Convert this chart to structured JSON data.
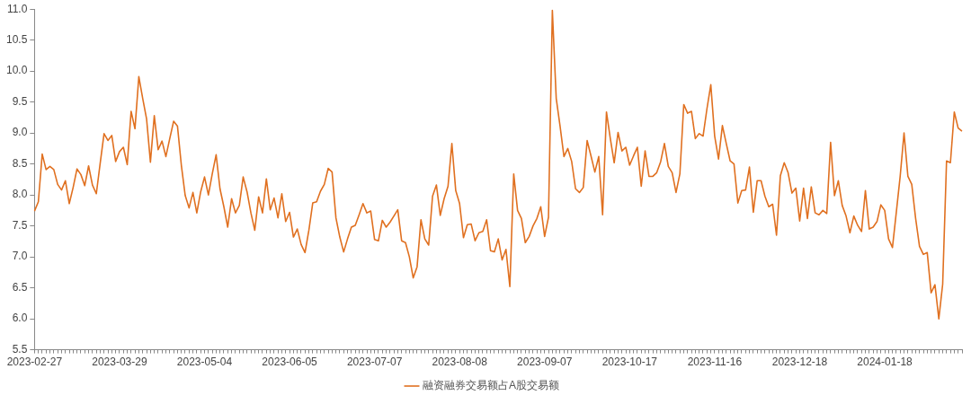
{
  "chart_data": {
    "type": "line",
    "categories": [
      "2023-02-27",
      null,
      null,
      null,
      null,
      null,
      null,
      null,
      null,
      null,
      null,
      null,
      null,
      null,
      null,
      null,
      null,
      null,
      null,
      null,
      null,
      null,
      "2023-03-29",
      null,
      null,
      null,
      null,
      null,
      null,
      null,
      null,
      null,
      null,
      null,
      null,
      null,
      null,
      null,
      null,
      null,
      null,
      null,
      null,
      null,
      "2023-05-04",
      null,
      null,
      null,
      null,
      null,
      null,
      null,
      null,
      null,
      null,
      null,
      null,
      null,
      null,
      null,
      null,
      null,
      null,
      null,
      null,
      null,
      "2023-06-05",
      null,
      null,
      null,
      null,
      null,
      null,
      null,
      null,
      null,
      null,
      null,
      null,
      null,
      null,
      null,
      null,
      null,
      null,
      null,
      null,
      null,
      "2023-07-07",
      null,
      null,
      null,
      null,
      null,
      null,
      null,
      null,
      null,
      null,
      null,
      null,
      null,
      null,
      null,
      null,
      null,
      null,
      null,
      null,
      null,
      "2023-08-08",
      null,
      null,
      null,
      null,
      null,
      null,
      null,
      null,
      null,
      null,
      null,
      null,
      null,
      null,
      null,
      null,
      null,
      null,
      null,
      null,
      null,
      "2023-09-07",
      null,
      null,
      null,
      null,
      null,
      null,
      null,
      null,
      null,
      null,
      null,
      null,
      null,
      null,
      null,
      null,
      null,
      null,
      null,
      null,
      null,
      "2023-10-17",
      null,
      null,
      null,
      null,
      null,
      null,
      null,
      null,
      null,
      null,
      null,
      null,
      null,
      null,
      null,
      null,
      null,
      null,
      null,
      null,
      null,
      "2023-11-16",
      null,
      null,
      null,
      null,
      null,
      null,
      null,
      null,
      null,
      null,
      null,
      null,
      null,
      null,
      null,
      null,
      null,
      null,
      null,
      null,
      null,
      "2023-12-18",
      null,
      null,
      null,
      null,
      null,
      null,
      null,
      null,
      null,
      null,
      null,
      null,
      null,
      null,
      null,
      null,
      null,
      null,
      null,
      null,
      null,
      "2024-01-18",
      null,
      null,
      null,
      null,
      null,
      null,
      null,
      null,
      null,
      null,
      null,
      null,
      null,
      null,
      null,
      null,
      null,
      null,
      null,
      null
    ],
    "series": [
      {
        "name": "融资融券交易额占A股交易额",
        "color": "#e07020",
        "values": [
          7.74,
          7.89,
          8.66,
          8.41,
          8.46,
          8.41,
          8.17,
          8.08,
          8.23,
          7.86,
          8.12,
          8.42,
          8.33,
          8.15,
          8.47,
          8.16,
          8.02,
          8.51,
          8.99,
          8.88,
          8.96,
          8.54,
          8.7,
          8.77,
          8.49,
          9.35,
          9.07,
          9.91,
          9.56,
          9.23,
          8.53,
          9.28,
          8.73,
          8.87,
          8.62,
          8.91,
          9.19,
          9.11,
          8.48,
          7.99,
          7.79,
          8.04,
          7.71,
          8.05,
          8.29,
          8.0,
          8.34,
          8.65,
          8.1,
          7.81,
          7.48,
          7.94,
          7.71,
          7.83,
          8.29,
          8.05,
          7.71,
          7.43,
          7.97,
          7.71,
          8.26,
          7.76,
          7.95,
          7.63,
          8.02,
          7.57,
          7.72,
          7.32,
          7.45,
          7.2,
          7.07,
          7.43,
          7.87,
          7.89,
          8.06,
          8.17,
          8.43,
          8.37,
          7.63,
          7.32,
          7.08,
          7.29,
          7.48,
          7.51,
          7.68,
          7.86,
          7.71,
          7.74,
          7.28,
          7.26,
          7.59,
          7.48,
          7.56,
          7.66,
          7.76,
          7.26,
          7.23,
          7.0,
          6.66,
          6.84,
          7.6,
          7.29,
          7.19,
          7.98,
          8.16,
          7.67,
          7.94,
          8.14,
          8.83,
          8.07,
          7.86,
          7.31,
          7.52,
          7.53,
          7.26,
          7.39,
          7.41,
          7.6,
          7.1,
          7.08,
          7.29,
          6.95,
          7.12,
          6.52,
          8.34,
          7.75,
          7.62,
          7.23,
          7.33,
          7.5,
          7.62,
          7.81,
          7.33,
          7.64,
          10.98,
          9.56,
          9.11,
          8.62,
          8.75,
          8.54,
          8.1,
          8.04,
          8.12,
          8.88,
          8.63,
          8.37,
          8.62,
          7.68,
          9.34,
          8.91,
          8.52,
          9.01,
          8.71,
          8.77,
          8.48,
          8.63,
          8.77,
          8.14,
          8.71,
          8.3,
          8.3,
          8.36,
          8.53,
          8.83,
          8.46,
          8.36,
          8.04,
          8.34,
          9.46,
          9.32,
          9.35,
          8.91,
          8.99,
          8.95,
          9.39,
          9.78,
          8.95,
          8.58,
          9.12,
          8.83,
          8.55,
          8.5,
          7.87,
          8.07,
          8.08,
          8.45,
          7.72,
          8.23,
          8.23,
          7.98,
          7.81,
          7.85,
          7.35,
          8.31,
          8.52,
          8.36,
          8.03,
          8.11,
          7.58,
          8.11,
          7.62,
          8.13,
          7.71,
          7.68,
          7.75,
          7.7,
          8.85,
          7.99,
          8.23,
          7.83,
          7.66,
          7.39,
          7.66,
          7.51,
          7.41,
          8.07,
          7.45,
          7.48,
          7.57,
          7.84,
          7.75,
          7.29,
          7.15,
          7.72,
          8.3,
          9.0,
          8.3,
          8.17,
          7.62,
          7.17,
          7.04,
          7.07,
          6.42,
          6.55,
          6.0,
          6.56,
          8.55,
          8.52,
          9.34,
          9.08,
          9.03
        ]
      }
    ],
    "ylim": [
      5.5,
      11.0
    ],
    "yticks": [
      {
        "value": 5.5,
        "label": "5.5"
      },
      {
        "value": 6,
        "label": "6.0"
      },
      {
        "value": 6.5,
        "label": "6.5"
      },
      {
        "value": 7,
        "label": "7.0"
      },
      {
        "value": 7.5,
        "label": "7.5"
      },
      {
        "value": 8,
        "label": "8.0"
      },
      {
        "value": 8.5,
        "label": "8.5"
      },
      {
        "value": 9,
        "label": "9.0"
      },
      {
        "value": 9.5,
        "label": "9.5"
      },
      {
        "value": 10,
        "label": "10.0"
      },
      {
        "value": 10.5,
        "label": "10.5"
      },
      {
        "value": 11,
        "label": "11.0"
      }
    ],
    "grid": false,
    "legend": "bottom",
    "marker": "none",
    "line_style": "solid"
  }
}
